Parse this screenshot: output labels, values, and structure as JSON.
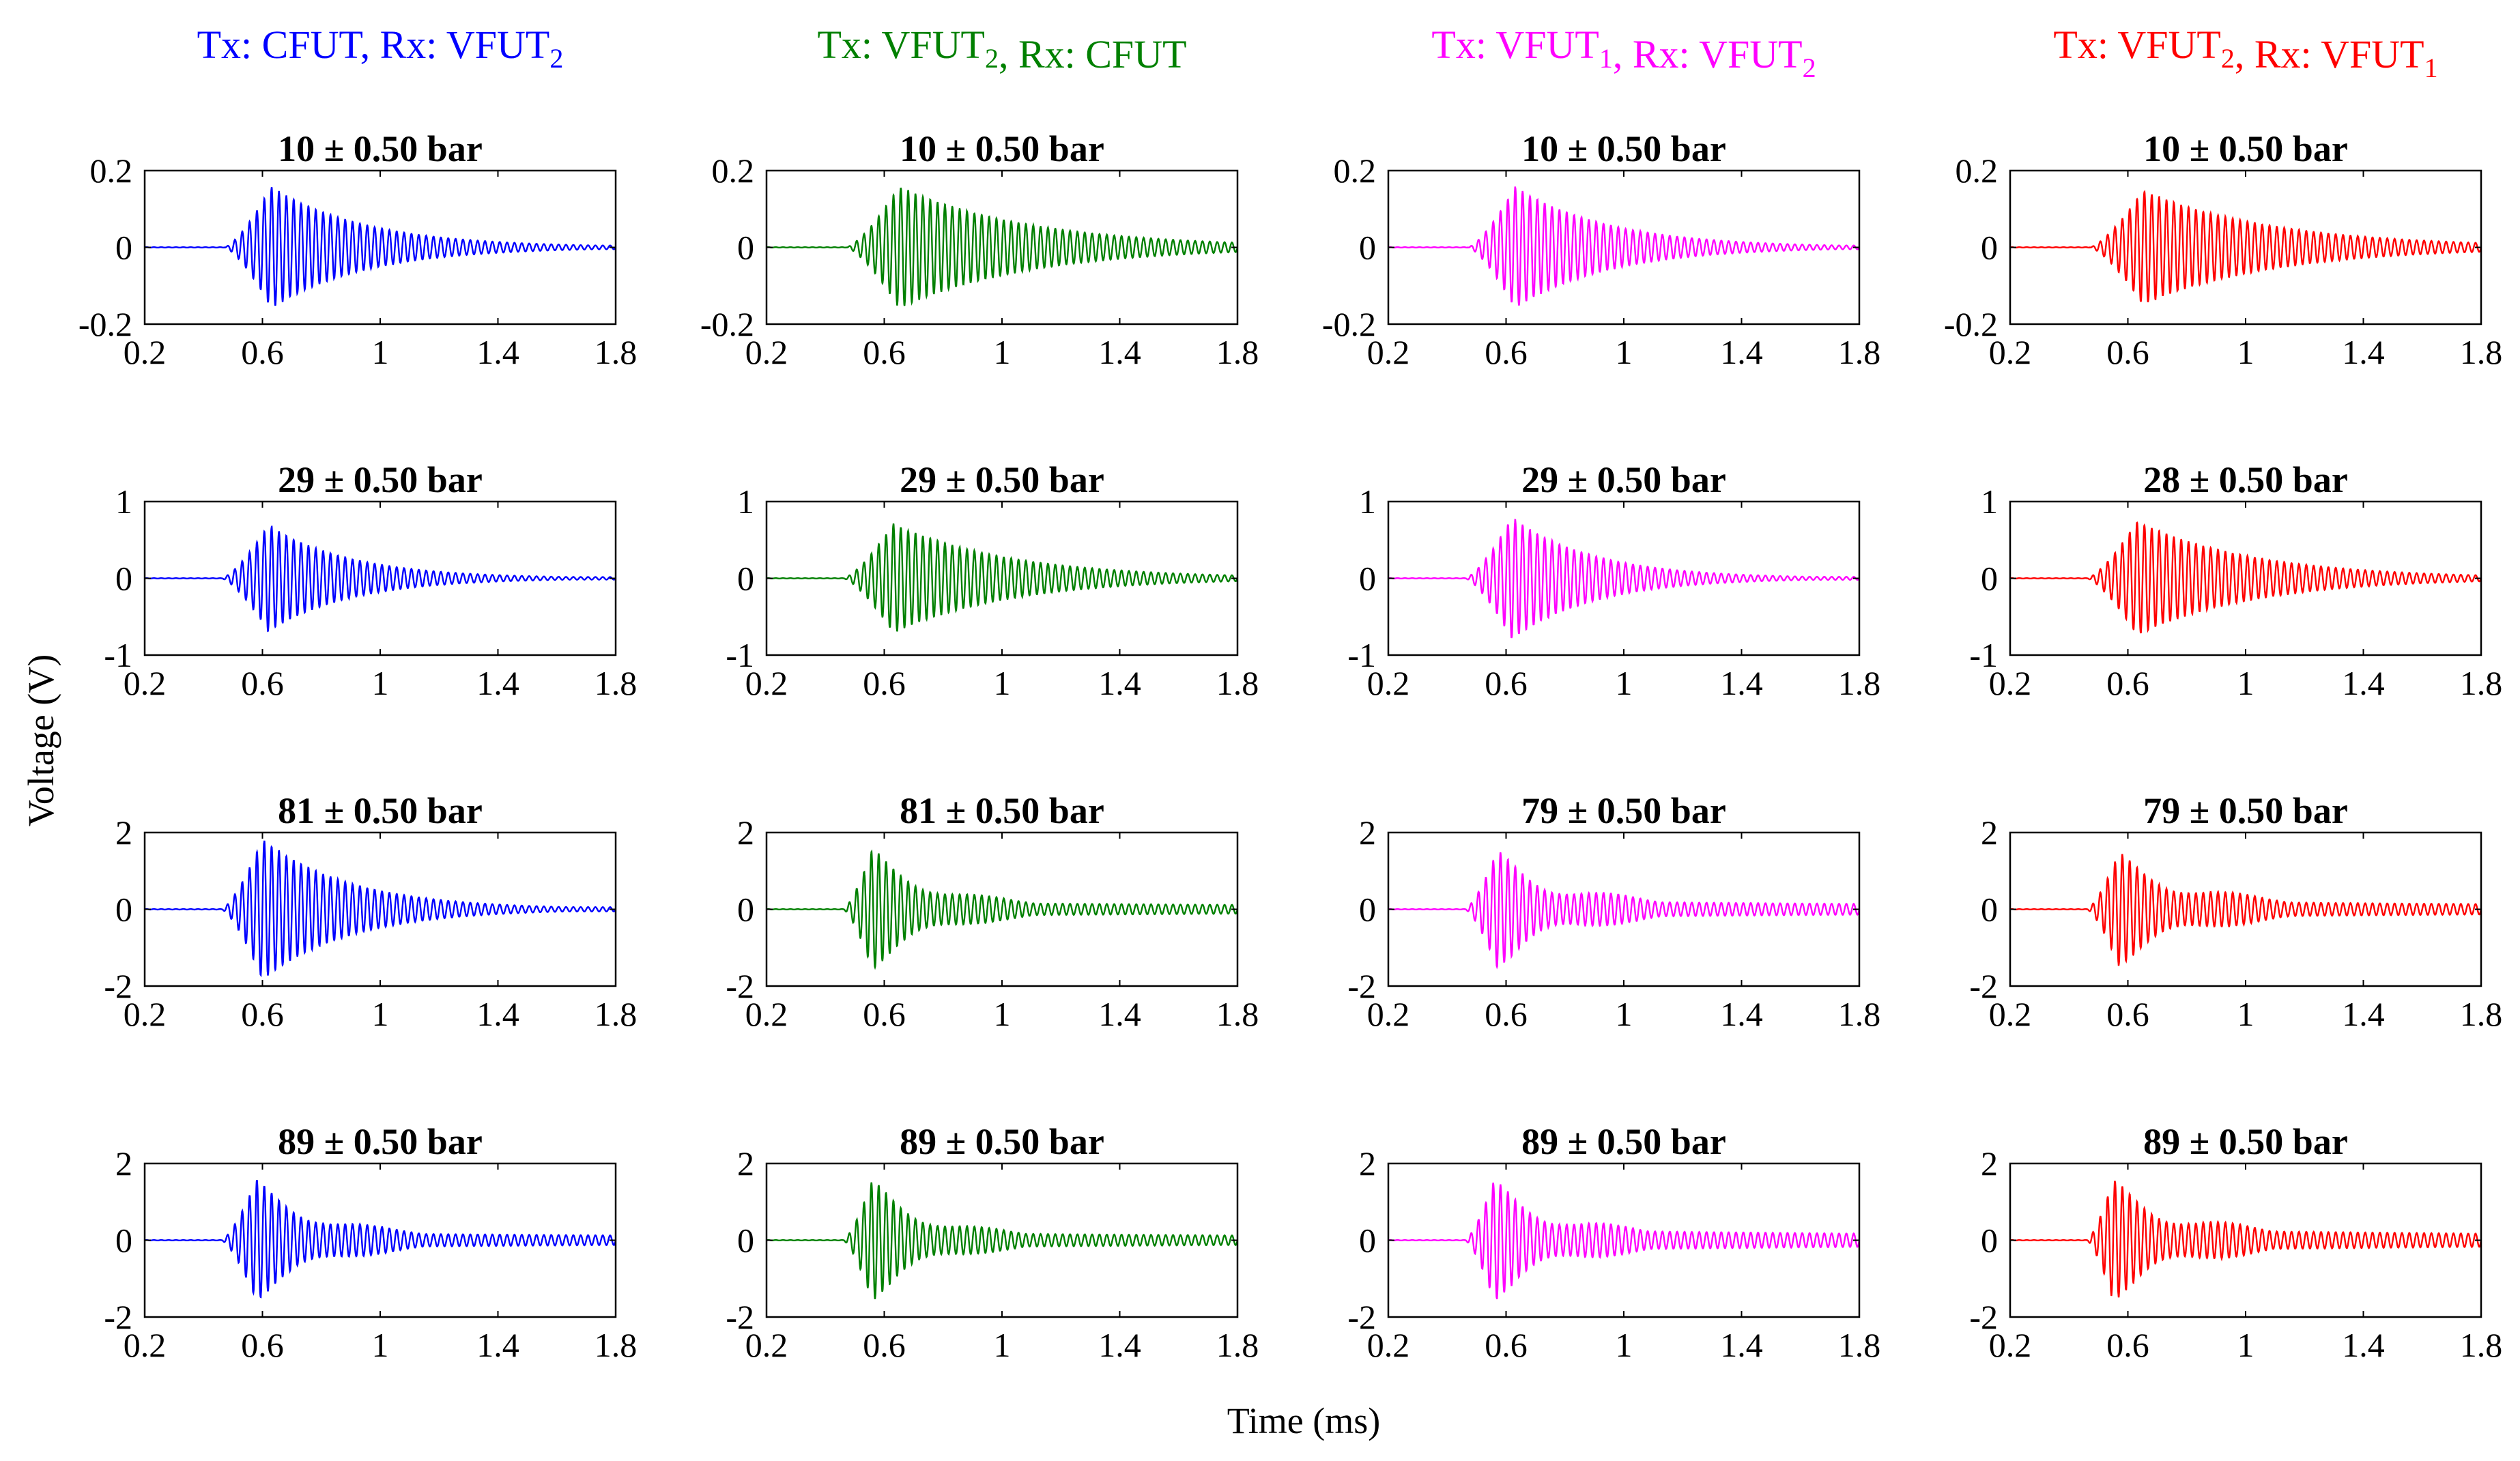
{
  "chart_data": {
    "type": "line",
    "xlabel": "Time (ms)",
    "ylabel": "Voltage (V)",
    "xlim": [
      0.2,
      1.8
    ],
    "xticks": [
      "0.2",
      "0.6",
      "1",
      "1.4",
      "1.8"
    ],
    "columns": [
      {
        "tx_label": "Tx:",
        "tx": "CFUT",
        "tx_sub": "",
        "sep": ", ",
        "rx_label": "Rx:",
        "rx": "VFUT",
        "rx_sub": "2",
        "color": "#0000ff"
      },
      {
        "tx_label": "Tx:",
        "tx": "VFUT",
        "tx_sub": "2",
        "sep": ", ",
        "rx_label": "Rx:",
        "rx": "CFUT",
        "rx_sub": "",
        "color": "#008000"
      },
      {
        "tx_label": "Tx:",
        "tx": "VFUT",
        "tx_sub": "1",
        "sep": ", ",
        "rx_label": "Rx:",
        "rx": "VFUT",
        "rx_sub": "2",
        "color": "#ff00ff"
      },
      {
        "tx_label": "Tx:",
        "tx": "VFUT",
        "tx_sub": "2",
        "sep": ", ",
        "rx_label": "Rx:",
        "rx": "VFUT",
        "rx_sub": "1",
        "color": "#ff0000"
      }
    ],
    "rows": [
      {
        "ylim": [
          -0.2,
          0.2
        ],
        "yticks": [
          "0.2",
          "0",
          "-0.2"
        ]
      },
      {
        "ylim": [
          -1,
          1
        ],
        "yticks": [
          "1",
          "0",
          "-1"
        ]
      },
      {
        "ylim": [
          -2,
          2
        ],
        "yticks": [
          "2",
          "0",
          "-2"
        ]
      },
      {
        "ylim": [
          -2,
          2
        ],
        "yticks": [
          "2",
          "0",
          "-2"
        ]
      }
    ],
    "panels": [
      {
        "row": 0,
        "col": 0,
        "title": "10 ± 0.50 bar",
        "onset": 0.47,
        "peak_time": 0.63,
        "amplitude": 0.16,
        "decay": 0.32,
        "beat": 0,
        "tail": 0.05
      },
      {
        "row": 0,
        "col": 1,
        "title": "10 ± 0.50 bar",
        "onset": 0.47,
        "peak_time": 0.65,
        "amplitude": 0.16,
        "decay": 0.45,
        "beat": 0,
        "tail": 0.08
      },
      {
        "row": 0,
        "col": 2,
        "title": "10 ± 0.50 bar",
        "onset": 0.47,
        "peak_time": 0.63,
        "amplitude": 0.16,
        "decay": 0.32,
        "beat": 0,
        "tail": 0.05
      },
      {
        "row": 0,
        "col": 3,
        "title": "10 ± 0.50 bar",
        "onset": 0.47,
        "peak_time": 0.65,
        "amplitude": 0.15,
        "decay": 0.45,
        "beat": 0,
        "tail": 0.08
      },
      {
        "row": 1,
        "col": 0,
        "title": "29 ± 0.50 bar",
        "onset": 0.46,
        "peak_time": 0.62,
        "amplitude": 0.7,
        "decay": 0.28,
        "beat": 0,
        "tail": 0.04
      },
      {
        "row": 1,
        "col": 1,
        "title": "29 ± 0.50 bar",
        "onset": 0.46,
        "peak_time": 0.63,
        "amplitude": 0.72,
        "decay": 0.4,
        "beat": 0,
        "tail": 0.08
      },
      {
        "row": 1,
        "col": 2,
        "title": "29 ± 0.50 bar",
        "onset": 0.46,
        "peak_time": 0.62,
        "amplitude": 0.8,
        "decay": 0.28,
        "beat": 0,
        "tail": 0.04
      },
      {
        "row": 1,
        "col": 3,
        "title": "28 ± 0.50 bar",
        "onset": 0.46,
        "peak_time": 0.63,
        "amplitude": 0.75,
        "decay": 0.4,
        "beat": 0,
        "tail": 0.08
      },
      {
        "row": 2,
        "col": 0,
        "title": "81 ± 0.50 bar",
        "onset": 0.46,
        "peak_time": 0.6,
        "amplitude": 1.85,
        "decay": 0.3,
        "beat": 0,
        "tail": 0.05
      },
      {
        "row": 2,
        "col": 1,
        "title": "81 ± 0.50 bar",
        "onset": 0.46,
        "peak_time": 0.56,
        "amplitude": 1.6,
        "decay": 0.26,
        "beat": 0.5,
        "tail": 0.12
      },
      {
        "row": 2,
        "col": 2,
        "title": "79 ± 0.50 bar",
        "onset": 0.46,
        "peak_time": 0.57,
        "amplitude": 1.55,
        "decay": 0.3,
        "beat": 0.6,
        "tail": 0.15
      },
      {
        "row": 2,
        "col": 3,
        "title": "79 ± 0.50 bar",
        "onset": 0.46,
        "peak_time": 0.57,
        "amplitude": 1.5,
        "decay": 0.32,
        "beat": 0.55,
        "tail": 0.15
      },
      {
        "row": 3,
        "col": 0,
        "title": "89 ± 0.50 bar",
        "onset": 0.46,
        "peak_time": 0.58,
        "amplitude": 1.6,
        "decay": 0.28,
        "beat": 0.5,
        "tail": 0.13
      },
      {
        "row": 3,
        "col": 1,
        "title": "89 ± 0.50 bar",
        "onset": 0.46,
        "peak_time": 0.56,
        "amplitude": 1.6,
        "decay": 0.25,
        "beat": 0.55,
        "tail": 0.13
      },
      {
        "row": 3,
        "col": 2,
        "title": "89 ± 0.50 bar",
        "onset": 0.46,
        "peak_time": 0.56,
        "amplitude": 1.6,
        "decay": 0.3,
        "beat": 0.6,
        "tail": 0.18
      },
      {
        "row": 3,
        "col": 3,
        "title": "89 ± 0.50 bar",
        "onset": 0.46,
        "peak_time": 0.55,
        "amplitude": 1.6,
        "decay": 0.32,
        "beat": 0.6,
        "tail": 0.18
      }
    ]
  }
}
